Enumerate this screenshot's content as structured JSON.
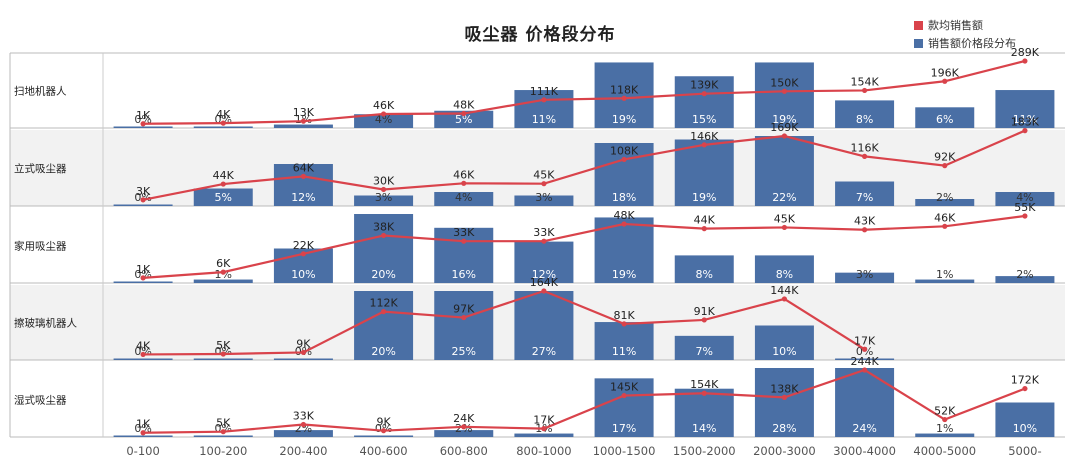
{
  "chart_data": {
    "type": "bar",
    "title": "吸尘器 价格段分布",
    "legend": {
      "position": "top-right",
      "items": [
        {
          "name": "款均销售额",
          "color": "#d9434b"
        },
        {
          "name": "销售额价格段分布",
          "color": "#4a6fa5"
        }
      ]
    },
    "categories": [
      "0-100",
      "100-200",
      "200-400",
      "400-600",
      "600-800",
      "800-1000",
      "1000-1500",
      "1500-2000",
      "2000-3000",
      "3000-4000",
      "4000-5000",
      "5000-"
    ],
    "series": [
      {
        "name": "扫地机器人",
        "pct_values": [
          0,
          0,
          1,
          4,
          5,
          11,
          19,
          15,
          19,
          8,
          6,
          11
        ],
        "pct_labels": [
          "0%",
          "0%",
          "1%",
          "4%",
          "5%",
          "11%",
          "19%",
          "15%",
          "19%",
          "8%",
          "6%",
          "11%"
        ],
        "avg_values": [
          1,
          4,
          13,
          46,
          48,
          111,
          118,
          139,
          150,
          154,
          196,
          289
        ],
        "avg_labels": [
          "1K",
          "4K",
          "13K",
          "46K",
          "48K",
          "111K",
          "118K",
          "139K",
          "150K",
          "154K",
          "196K",
          "289K"
        ]
      },
      {
        "name": "立式吸尘器",
        "pct_values": [
          0,
          5,
          12,
          3,
          4,
          3,
          18,
          19,
          22,
          7,
          2,
          4
        ],
        "pct_labels": [
          "0%",
          "5%",
          "12%",
          "3%",
          "4%",
          "3%",
          "18%",
          "19%",
          "22%",
          "7%",
          "2%",
          "4%"
        ],
        "avg_values": [
          3,
          44,
          64,
          30,
          46,
          45,
          108,
          146,
          169,
          116,
          92,
          183
        ],
        "avg_labels": [
          "3K",
          "44K",
          "64K",
          "30K",
          "46K",
          "45K",
          "108K",
          "146K",
          "169K",
          "116K",
          "92K",
          "183K"
        ]
      },
      {
        "name": "家用吸尘器",
        "pct_values": [
          0,
          1,
          10,
          20,
          16,
          12,
          19,
          8,
          8,
          3,
          1,
          2
        ],
        "pct_labels": [
          "0%",
          "1%",
          "10%",
          "20%",
          "16%",
          "12%",
          "19%",
          "8%",
          "8%",
          "3%",
          "1%",
          "2%"
        ],
        "avg_values": [
          1,
          6,
          22,
          38,
          33,
          33,
          48,
          44,
          45,
          43,
          46,
          55
        ],
        "avg_labels": [
          "1K",
          "6K",
          "22K",
          "38K",
          "33K",
          "33K",
          "48K",
          "44K",
          "45K",
          "43K",
          "46K",
          "55K"
        ]
      },
      {
        "name": "擦玻璃机器人",
        "pct_values": [
          0,
          0,
          0,
          20,
          25,
          27,
          11,
          7,
          10,
          0,
          0,
          0
        ],
        "pct_labels": [
          "0%",
          "0%",
          "0%",
          "20%",
          "25%",
          "27%",
          "11%",
          "7%",
          "10%",
          "0%",
          "",
          ""
        ],
        "avg_values": [
          4,
          5,
          9,
          112,
          97,
          164,
          81,
          91,
          144,
          17,
          null,
          null
        ],
        "avg_labels": [
          "4K",
          "5K",
          "9K",
          "112K",
          "97K",
          "164K",
          "81K",
          "91K",
          "144K",
          "17K",
          "",
          ""
        ]
      },
      {
        "name": "湿式吸尘器",
        "pct_values": [
          0,
          0,
          2,
          0,
          2,
          1,
          17,
          14,
          28,
          24,
          1,
          10
        ],
        "pct_labels": [
          "0%",
          "0%",
          "2%",
          "0%",
          "2%",
          "1%",
          "17%",
          "14%",
          "28%",
          "24%",
          "1%",
          "10%"
        ],
        "avg_values": [
          1,
          5,
          33,
          9,
          24,
          17,
          145,
          154,
          138,
          244,
          52,
          172
        ],
        "avg_labels": [
          "1K",
          "5K",
          "33K",
          "9K",
          "24K",
          "17K",
          "145K",
          "154K",
          "138K",
          "244K",
          "52K",
          "172K"
        ]
      }
    ],
    "bar_color": "#4a6fa5",
    "line_color": "#d9434b",
    "grid": false
  }
}
